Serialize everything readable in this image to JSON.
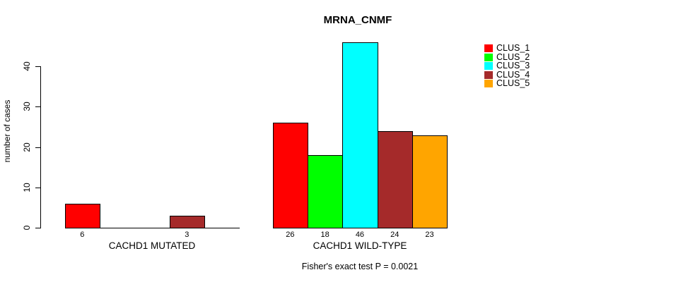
{
  "chart_data": {
    "type": "bar",
    "title": "MRNA_CNMF",
    "ylabel": "number of cases",
    "xlabel": "",
    "ylim": [
      0,
      46
    ],
    "yticks": [
      0,
      10,
      20,
      30,
      40
    ],
    "grid": false,
    "legend": {
      "position": "right",
      "entries": [
        {
          "label": "CLUS_1",
          "color": "#ff0000"
        },
        {
          "label": "CLUS_2",
          "color": "#00ff00"
        },
        {
          "label": "CLUS_3",
          "color": "#00ffff"
        },
        {
          "label": "CLUS_4",
          "color": "#a52a2a"
        },
        {
          "label": "CLUS_5",
          "color": "#ffa500"
        }
      ]
    },
    "series_names": [
      "CLUS_1",
      "CLUS_2",
      "CLUS_3",
      "CLUS_4",
      "CLUS_5"
    ],
    "groups": [
      {
        "label": "CACHD1 MUTATED",
        "values": [
          6,
          0,
          0,
          3,
          0
        ],
        "shown_value_labels": [
          "6",
          "3"
        ]
      },
      {
        "label": "CACHD1 WILD-TYPE",
        "values": [
          26,
          18,
          46,
          24,
          23
        ],
        "shown_value_labels": [
          "26",
          "18",
          "46",
          "24",
          "23"
        ]
      }
    ],
    "annotation": "Fisher's exact test P = 0.0021"
  }
}
